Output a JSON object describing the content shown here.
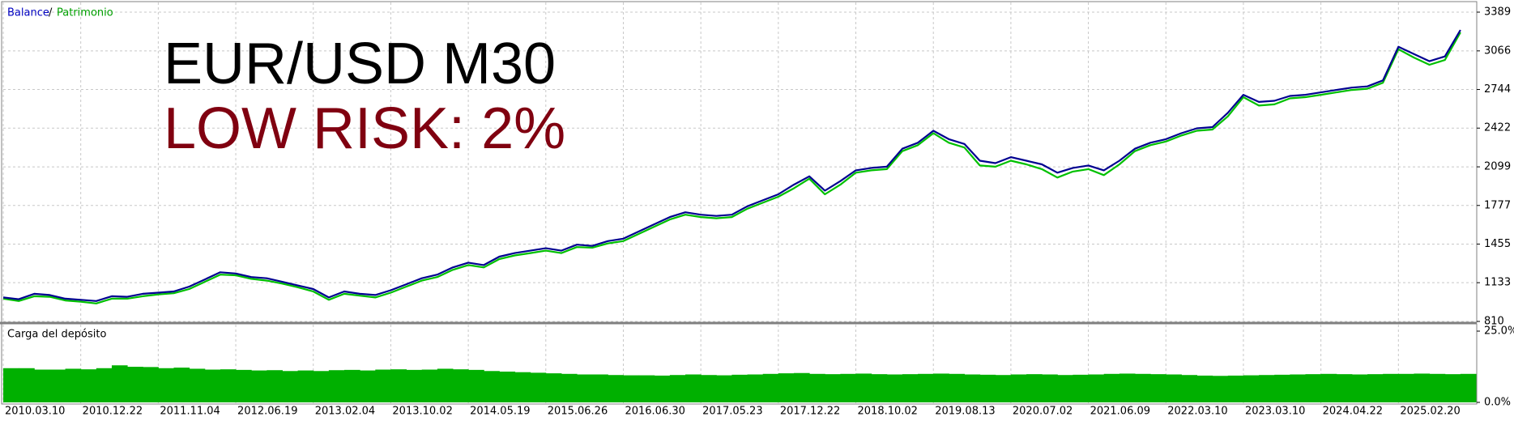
{
  "chart_data": [
    {
      "type": "line",
      "title": "EUR/USD M30",
      "subtitle": "LOW RISK: 2%",
      "legend_separator": "/",
      "x": [
        0,
        1,
        2,
        3,
        4,
        5,
        6,
        7,
        8,
        9,
        10,
        11,
        12,
        13,
        14,
        15,
        16,
        17,
        18,
        19,
        20,
        21,
        22,
        23,
        24,
        25,
        26,
        27,
        28,
        29,
        30,
        31,
        32,
        33,
        34,
        35,
        36,
        37,
        38,
        39,
        40,
        41,
        42,
        43,
        44,
        45,
        46,
        47,
        48,
        49,
        50,
        51,
        52,
        53,
        54,
        55,
        56,
        57,
        58,
        59,
        60,
        61,
        62,
        63,
        64,
        65,
        66,
        67,
        68,
        69,
        70,
        71,
        72,
        73,
        74,
        75,
        76,
        77,
        78,
        79,
        80,
        81,
        82,
        83,
        84,
        85,
        86,
        87,
        88,
        89,
        90,
        91,
        92,
        93,
        94
      ],
      "series": [
        {
          "name": "Patrimonio",
          "color": "#00c000",
          "values": [
            1000,
            980,
            1020,
            1015,
            985,
            975,
            960,
            1000,
            1000,
            1020,
            1035,
            1045,
            1080,
            1140,
            1200,
            1195,
            1165,
            1150,
            1125,
            1095,
            1060,
            990,
            1040,
            1025,
            1010,
            1050,
            1100,
            1150,
            1180,
            1240,
            1280,
            1260,
            1330,
            1360,
            1380,
            1400,
            1380,
            1430,
            1425,
            1460,
            1480,
            1540,
            1600,
            1660,
            1700,
            1680,
            1670,
            1680,
            1750,
            1800,
            1850,
            1920,
            2000,
            1870,
            1950,
            2050,
            2070,
            2080,
            2230,
            2280,
            2380,
            2300,
            2260,
            2110,
            2100,
            2150,
            2120,
            2080,
            2010,
            2060,
            2080,
            2030,
            2120,
            2230,
            2280,
            2310,
            2360,
            2400,
            2410,
            2520,
            2680,
            2610,
            2620,
            2670,
            2680,
            2700,
            2720,
            2740,
            2750,
            2800,
            3080,
            3010,
            2950,
            2990,
            3220
          ]
        },
        {
          "name": "Balance",
          "color": "#000090",
          "values": [
            1010,
            995,
            1040,
            1030,
            1000,
            990,
            980,
            1020,
            1015,
            1040,
            1050,
            1060,
            1100,
            1160,
            1220,
            1210,
            1180,
            1170,
            1140,
            1110,
            1080,
            1010,
            1060,
            1040,
            1030,
            1070,
            1120,
            1170,
            1200,
            1260,
            1300,
            1280,
            1350,
            1380,
            1400,
            1420,
            1400,
            1450,
            1440,
            1480,
            1500,
            1560,
            1620,
            1680,
            1720,
            1700,
            1690,
            1700,
            1770,
            1820,
            1870,
            1950,
            2020,
            1900,
            1980,
            2070,
            2090,
            2100,
            2250,
            2300,
            2400,
            2330,
            2290,
            2150,
            2130,
            2180,
            2150,
            2120,
            2050,
            2090,
            2110,
            2070,
            2150,
            2250,
            2300,
            2330,
            2380,
            2420,
            2430,
            2550,
            2700,
            2640,
            2650,
            2690,
            2700,
            2720,
            2740,
            2760,
            2770,
            2820,
            3100,
            3040,
            2980,
            3020,
            3240
          ]
        }
      ],
      "xlim": [
        0,
        95
      ],
      "xticks": [
        {
          "value": 0,
          "label": "2010.03.10"
        },
        {
          "value": 5,
          "label": "2010.12.22"
        },
        {
          "value": 10,
          "label": "2011.11.04"
        },
        {
          "value": 15,
          "label": "2012.06.19"
        },
        {
          "value": 20,
          "label": "2013.02.04"
        },
        {
          "value": 25,
          "label": "2013.10.02"
        },
        {
          "value": 30,
          "label": "2014.05.19"
        },
        {
          "value": 35,
          "label": "2015.06.26"
        },
        {
          "value": 40,
          "label": "2016.06.30"
        },
        {
          "value": 45,
          "label": "2017.05.23"
        },
        {
          "value": 50,
          "label": "2017.12.22"
        },
        {
          "value": 55,
          "label": "2018.10.02"
        },
        {
          "value": 60,
          "label": "2019.08.13"
        },
        {
          "value": 65,
          "label": "2020.07.02"
        },
        {
          "value": 70,
          "label": "2021.06.09"
        },
        {
          "value": 75,
          "label": "2022.03.10"
        },
        {
          "value": 80,
          "label": "2023.03.10"
        },
        {
          "value": 85,
          "label": "2024.04.22"
        },
        {
          "value": 90,
          "label": "2025.02.20"
        }
      ],
      "ylim": [
        810,
        3389
      ],
      "yticks": [
        810,
        1133,
        1455,
        1777,
        2099,
        2422,
        2744,
        3066,
        3389
      ],
      "grid": true
    },
    {
      "type": "bar",
      "title": "Carga del depósito",
      "color": "#00b000",
      "values": [
        12,
        12,
        11.5,
        11.5,
        11.8,
        11.6,
        12,
        13,
        12.5,
        12.4,
        12,
        12.2,
        11.8,
        11.5,
        11.6,
        11.4,
        11.2,
        11.3,
        11,
        11.2,
        11,
        11.3,
        11.4,
        11.2,
        11.5,
        11.6,
        11.4,
        11.5,
        11.8,
        11.6,
        11.4,
        11,
        10.8,
        10.6,
        10.4,
        10.2,
        10,
        9.8,
        9.8,
        9.6,
        9.5,
        9.5,
        9.4,
        9.6,
        9.8,
        9.6,
        9.5,
        9.7,
        9.8,
        10,
        10.2,
        10.3,
        10,
        9.9,
        10,
        10.1,
        9.9,
        9.8,
        9.9,
        10,
        10.1,
        10,
        9.8,
        9.7,
        9.6,
        9.8,
        9.9,
        9.8,
        9.6,
        9.7,
        9.8,
        10,
        10.1,
        10,
        9.9,
        9.8,
        9.6,
        9.4,
        9.3,
        9.4,
        9.5,
        9.6,
        9.7,
        9.8,
        9.9,
        10,
        9.9,
        9.8,
        9.9,
        10,
        10,
        10.1,
        10,
        9.9,
        10
      ],
      "ylim": [
        0,
        25
      ],
      "yticks": [
        {
          "value": 0,
          "label": "0.0%"
        },
        {
          "value": 25,
          "label": "25.0%"
        }
      ],
      "grid": true
    }
  ]
}
